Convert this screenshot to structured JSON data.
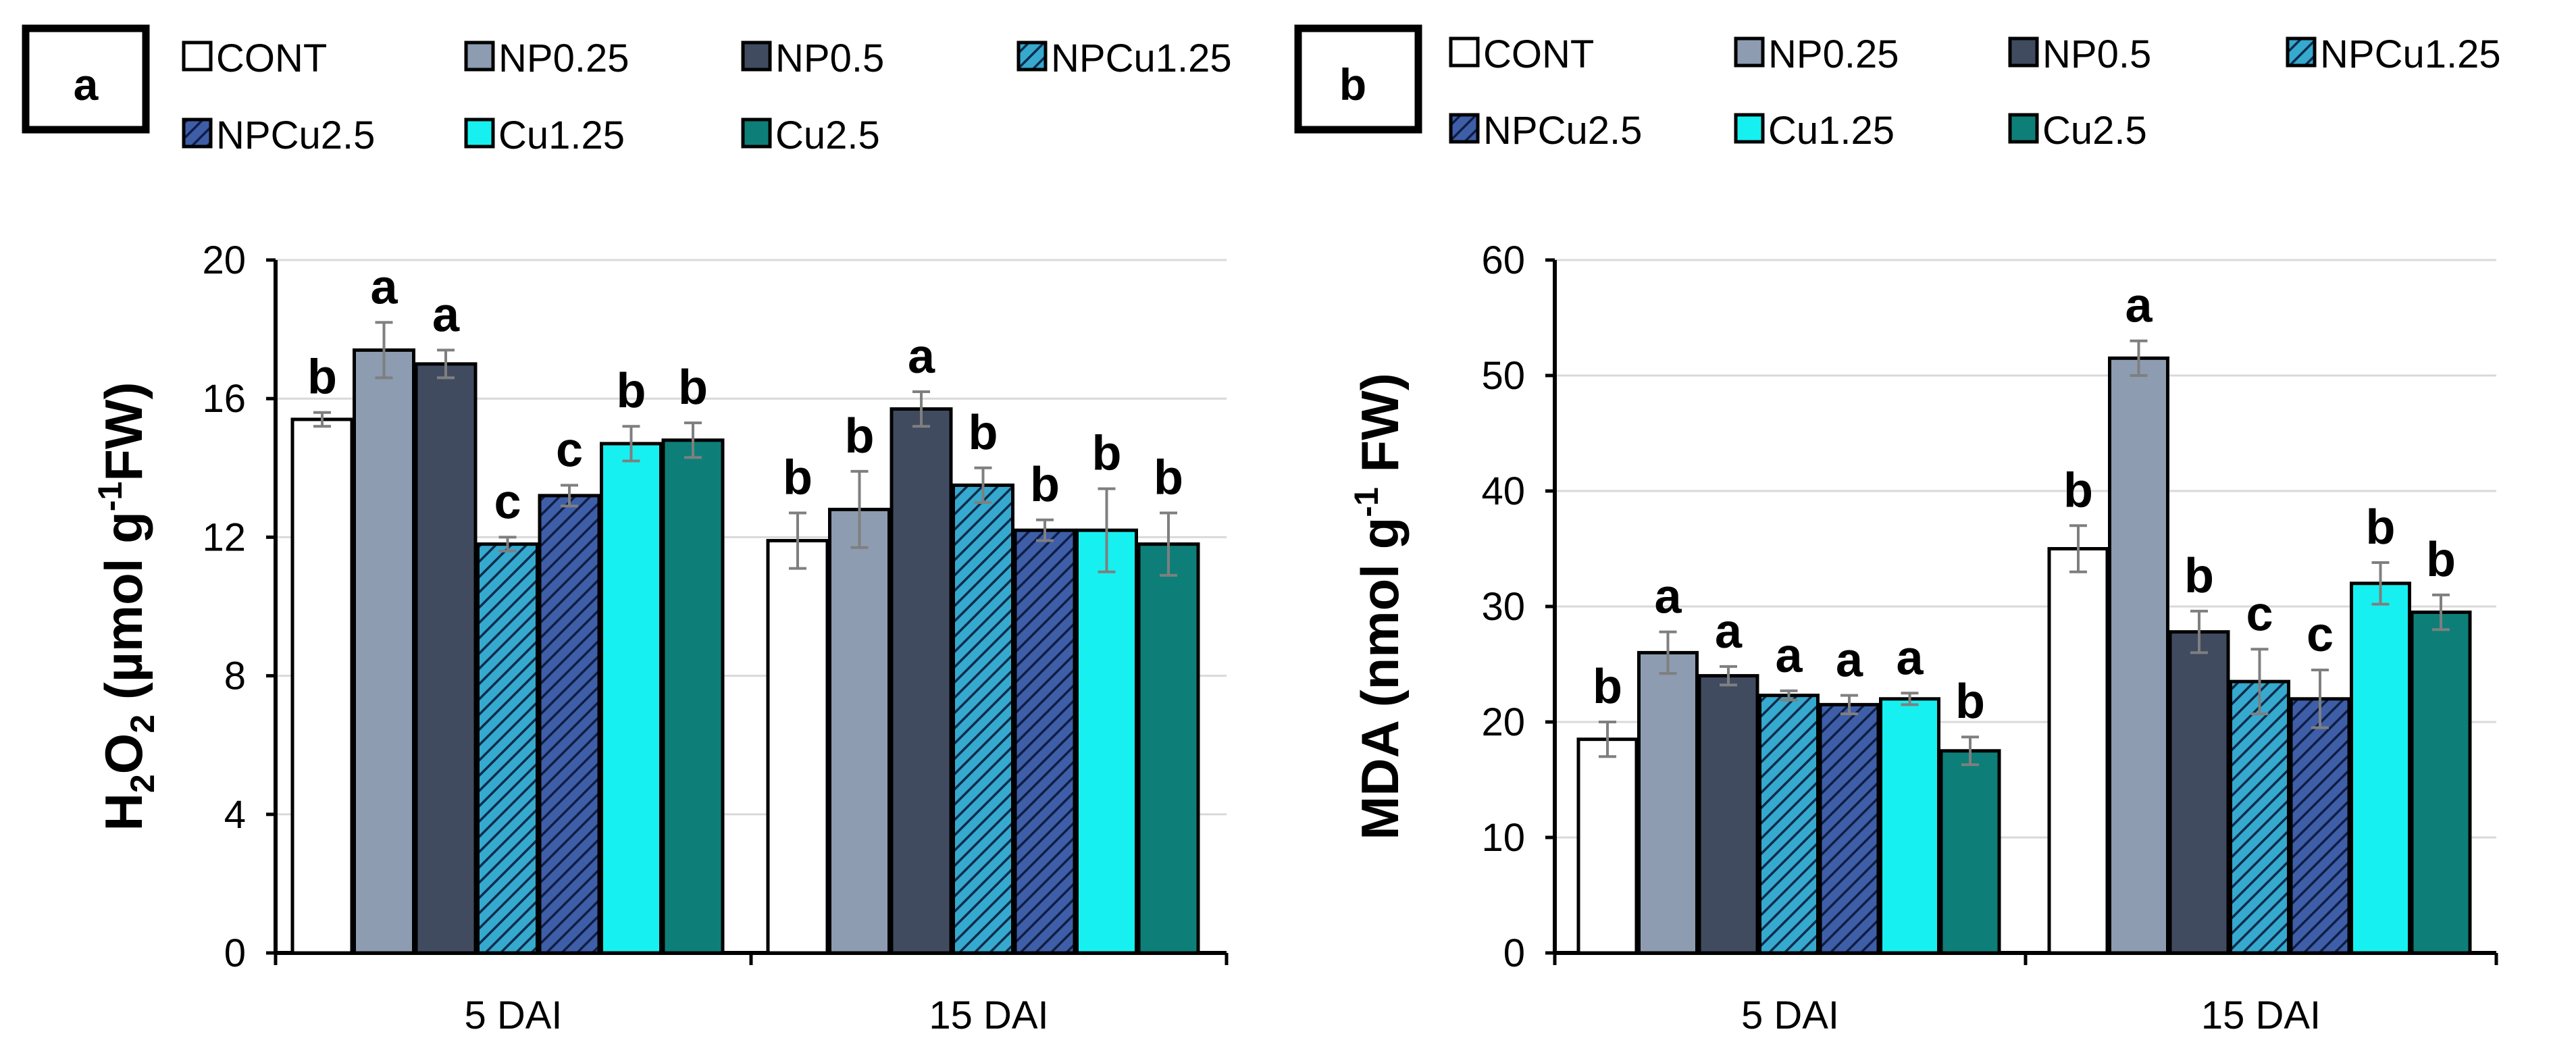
{
  "styles": [
    {
      "key": "CONT",
      "fill": "#ffffff",
      "hatch": null
    },
    {
      "key": "NP0.25",
      "fill": "#8d9cb0",
      "hatch": null
    },
    {
      "key": "NP0.5",
      "fill": "#414b60",
      "hatch": null
    },
    {
      "key": "NPCu1.25",
      "fill": "#36a9cf",
      "hatch": "#0d2c4a"
    },
    {
      "key": "NPCu2.5",
      "fill": "#3e5ea8",
      "hatch": "#0f1e45"
    },
    {
      "key": "Cu1.25",
      "fill": "#17f0f0",
      "hatch": null
    },
    {
      "key": "Cu2.5",
      "fill": "#0d7f78",
      "hatch": null
    }
  ],
  "chart_data": [
    {
      "panel": "a",
      "type": "bar",
      "legend": [
        "CONT",
        "NP0.25",
        "NP0.5",
        "NPCu1.25",
        "NPCu2.5",
        "Cu1.25",
        "Cu2.5"
      ],
      "ylabel_parts": [
        "H",
        "2",
        "O",
        "2",
        " (µmol g",
        "-1",
        "FW)"
      ],
      "ylim": [
        0,
        20
      ],
      "yticks": [
        "0",
        "4",
        "8",
        "12",
        "16",
        "20"
      ],
      "categories": [
        "5 DAI",
        "15 DAI"
      ],
      "series": [
        {
          "name": "CONT",
          "values": [
            15.4,
            11.9
          ],
          "errors": [
            0.2,
            0.8
          ],
          "letters": [
            "b",
            "b"
          ]
        },
        {
          "name": "NP0.25",
          "values": [
            17.4,
            12.8
          ],
          "errors": [
            0.8,
            1.1
          ],
          "letters": [
            "a",
            "b"
          ]
        },
        {
          "name": "NP0.5",
          "values": [
            17.0,
            15.7
          ],
          "errors": [
            0.4,
            0.5
          ],
          "letters": [
            "a",
            "a"
          ]
        },
        {
          "name": "NPCu1.25",
          "values": [
            11.8,
            13.5
          ],
          "errors": [
            0.2,
            0.5
          ],
          "letters": [
            "c",
            "b"
          ]
        },
        {
          "name": "NPCu2.5",
          "values": [
            13.2,
            12.2
          ],
          "errors": [
            0.3,
            0.3
          ],
          "letters": [
            "c",
            "b"
          ]
        },
        {
          "name": "Cu1.25",
          "values": [
            14.7,
            12.2
          ],
          "errors": [
            0.5,
            1.2
          ],
          "letters": [
            "b",
            "b"
          ]
        },
        {
          "name": "Cu2.5",
          "values": [
            14.8,
            11.8
          ],
          "errors": [
            0.5,
            0.9
          ],
          "letters": [
            "b",
            "b"
          ]
        }
      ]
    },
    {
      "panel": "b",
      "type": "bar",
      "legend": [
        "CONT",
        "NP0.25",
        "NP0.5",
        "NPCu1.25",
        "NPCu2.5",
        "Cu1.25",
        "Cu2.5"
      ],
      "ylabel_parts": [
        "MDA (nmol g",
        "-1",
        " FW)"
      ],
      "ylim": [
        0,
        60
      ],
      "yticks": [
        "0",
        "10",
        "20",
        "30",
        "40",
        "50",
        "60"
      ],
      "categories": [
        "5 DAI",
        "15 DAI"
      ],
      "series": [
        {
          "name": "CONT",
          "values": [
            18.5,
            35.0
          ],
          "errors": [
            1.5,
            2.0
          ],
          "letters": [
            "b",
            "b"
          ]
        },
        {
          "name": "NP0.25",
          "values": [
            26.0,
            51.5
          ],
          "errors": [
            1.8,
            1.5
          ],
          "letters": [
            "a",
            "a"
          ]
        },
        {
          "name": "NP0.5",
          "values": [
            24.0,
            27.8
          ],
          "errors": [
            0.8,
            1.8
          ],
          "letters": [
            "a",
            "b"
          ]
        },
        {
          "name": "NPCu1.25",
          "values": [
            22.3,
            23.5
          ],
          "errors": [
            0.4,
            2.8
          ],
          "letters": [
            "a",
            "c"
          ]
        },
        {
          "name": "NPCu2.5",
          "values": [
            21.5,
            22.0
          ],
          "errors": [
            0.8,
            2.5
          ],
          "letters": [
            "a",
            "c"
          ]
        },
        {
          "name": "Cu1.25",
          "values": [
            22.0,
            32.0
          ],
          "errors": [
            0.5,
            1.8
          ],
          "letters": [
            "a",
            "b"
          ]
        },
        {
          "name": "Cu2.5",
          "values": [
            17.5,
            29.5
          ],
          "errors": [
            1.2,
            1.5
          ],
          "letters": [
            "b",
            "b"
          ]
        }
      ]
    }
  ]
}
